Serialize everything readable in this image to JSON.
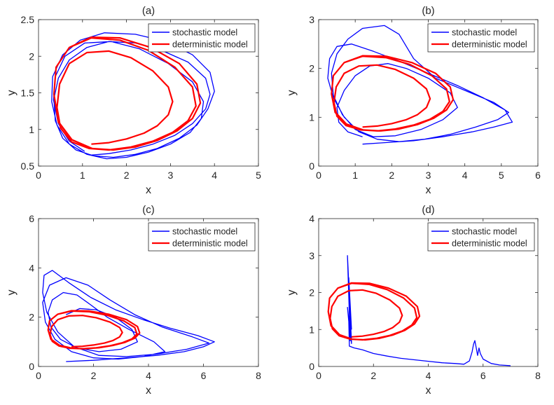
{
  "chart_data": [
    {
      "type": "line",
      "panel_label": "(a)",
      "title": "(a)",
      "xlabel": "x",
      "ylabel": "y",
      "xlim": [
        0,
        5
      ],
      "ylim": [
        0.5,
        2.5
      ],
      "xticks": [
        0,
        1,
        2,
        3,
        4,
        5
      ],
      "yticks": [
        0.5,
        1,
        1.5,
        2,
        2.5
      ],
      "xtick_labels": [
        "0",
        "1",
        "2",
        "3",
        "4",
        "5"
      ],
      "ytick_labels": [
        "0.5",
        "1",
        "1.5",
        "2",
        "2.5"
      ],
      "legend": {
        "position": "top-right",
        "entries": [
          "stochastic model",
          "deterministic model"
        ]
      },
      "series": [
        {
          "name": "stochastic model",
          "color": "#0000ff",
          "x": [
            1.2,
            1.6,
            2.1,
            2.6,
            3.1,
            3.5,
            3.8,
            3.9,
            3.8,
            3.4,
            2.8,
            2.2,
            1.6,
            1.1,
            0.7,
            0.45,
            0.35,
            0.38,
            0.55,
            0.85,
            1.25,
            1.7,
            2.2,
            2.7,
            3.2,
            3.6,
            3.85,
            4.0,
            3.9,
            3.5,
            2.9,
            2.2,
            1.5,
            0.95,
            0.55,
            0.32,
            0.3,
            0.42,
            0.7,
            1.1,
            1.55,
            2.0,
            2.5,
            3.0,
            3.45,
            3.7,
            3.75,
            3.5,
            2.95,
            2.3,
            1.65,
            1.05,
            0.6,
            0.38,
            0.34,
            0.45,
            0.7,
            1.05
          ],
          "y": [
            0.65,
            0.67,
            0.72,
            0.8,
            0.92,
            1.08,
            1.28,
            1.48,
            1.7,
            1.92,
            2.08,
            2.18,
            2.2,
            2.12,
            1.95,
            1.7,
            1.42,
            1.12,
            0.88,
            0.72,
            0.64,
            0.62,
            0.66,
            0.74,
            0.88,
            1.06,
            1.28,
            1.52,
            1.78,
            2.02,
            2.2,
            2.3,
            2.32,
            2.22,
            2.02,
            1.72,
            1.38,
            1.06,
            0.8,
            0.66,
            0.6,
            0.62,
            0.69,
            0.8,
            0.96,
            1.15,
            1.38,
            1.65,
            1.9,
            2.1,
            2.2,
            2.18,
            2.0,
            1.72,
            1.4,
            1.08,
            0.84,
            0.7
          ]
        },
        {
          "name": "deterministic model",
          "color": "#ff0000",
          "x": [
            1.2,
            1.6,
            2.0,
            2.4,
            2.7,
            2.95,
            3.05,
            2.95,
            2.6,
            2.1,
            1.6,
            1.1,
            0.7,
            0.48,
            0.42,
            0.5,
            0.75,
            1.15,
            1.6,
            2.1,
            2.6,
            3.05,
            3.4,
            3.58,
            3.5,
            3.1,
            2.5,
            1.85,
            1.2,
            0.7,
            0.4,
            0.35,
            0.45,
            0.75,
            1.2,
            1.7,
            2.2,
            2.7,
            3.15,
            3.5,
            3.68,
            3.6,
            3.2,
            2.55,
            1.85,
            1.2,
            0.7,
            0.4,
            0.35,
            0.46,
            0.76,
            1.22
          ],
          "y": [
            0.8,
            0.82,
            0.87,
            0.95,
            1.05,
            1.2,
            1.38,
            1.58,
            1.8,
            1.98,
            2.07,
            2.05,
            1.9,
            1.62,
            1.3,
            1.02,
            0.83,
            0.74,
            0.72,
            0.76,
            0.84,
            0.96,
            1.12,
            1.32,
            1.58,
            1.85,
            2.08,
            2.22,
            2.25,
            2.12,
            1.85,
            1.48,
            1.1,
            0.86,
            0.74,
            0.72,
            0.76,
            0.85,
            0.98,
            1.15,
            1.36,
            1.62,
            1.9,
            2.12,
            2.25,
            2.26,
            2.12,
            1.85,
            1.48,
            1.1,
            0.86,
            0.74
          ]
        }
      ]
    },
    {
      "type": "line",
      "panel_label": "(b)",
      "title": "(b)",
      "xlabel": "x",
      "ylabel": "y",
      "xlim": [
        0,
        6
      ],
      "ylim": [
        0,
        3
      ],
      "xticks": [
        0,
        1,
        2,
        3,
        4,
        5,
        6
      ],
      "yticks": [
        0,
        1,
        2,
        3
      ],
      "xtick_labels": [
        "0",
        "1",
        "2",
        "3",
        "4",
        "5",
        "6"
      ],
      "ytick_labels": [
        "0",
        "1",
        "2",
        "3"
      ],
      "legend": {
        "position": "top-right",
        "entries": [
          "stochastic model",
          "deterministic model"
        ]
      },
      "series": [
        {
          "name": "stochastic model",
          "color": "#0000ff",
          "x": [
            1.2,
            1.8,
            2.6,
            3.4,
            4.2,
            4.8,
            5.3,
            5.1,
            4.5,
            3.8,
            3.0,
            2.2,
            1.5,
            0.9,
            0.5,
            0.3,
            0.25,
            0.4,
            0.7,
            1.1,
            1.6,
            2.2,
            2.9,
            3.6,
            4.3,
            4.9,
            5.2,
            4.8,
            4.0,
            3.2,
            2.6,
            2.2,
            1.8,
            1.2,
            0.8,
            0.5,
            0.35,
            0.4,
            0.65,
            1.0,
            1.5,
            2.1,
            2.8,
            3.4,
            3.8,
            3.6,
            3.0,
            2.4,
            1.9,
            1.4,
            1.0,
            0.7,
            0.5,
            0.55,
            0.8,
            1.2
          ],
          "y": [
            0.45,
            0.48,
            0.52,
            0.6,
            0.7,
            0.8,
            0.9,
            1.15,
            1.4,
            1.65,
            1.9,
            2.15,
            2.35,
            2.5,
            2.45,
            2.2,
            1.8,
            1.4,
            1.0,
            0.7,
            0.55,
            0.5,
            0.55,
            0.65,
            0.8,
            0.95,
            1.1,
            1.3,
            1.55,
            1.8,
            2.2,
            2.7,
            2.88,
            2.82,
            2.6,
            2.3,
            1.9,
            1.45,
            1.05,
            0.75,
            0.6,
            0.62,
            0.75,
            0.95,
            1.2,
            1.5,
            1.8,
            2.0,
            2.1,
            2.05,
            1.85,
            1.55,
            1.2,
            0.9,
            0.7,
            0.6
          ]
        },
        {
          "name": "deterministic model",
          "color": "#ff0000",
          "x": [
            1.2,
            1.6,
            2.0,
            2.4,
            2.7,
            2.95,
            3.05,
            2.95,
            2.6,
            2.1,
            1.6,
            1.1,
            0.7,
            0.48,
            0.42,
            0.5,
            0.75,
            1.15,
            1.6,
            2.1,
            2.6,
            3.05,
            3.4,
            3.58,
            3.5,
            3.1,
            2.5,
            1.85,
            1.2,
            0.7,
            0.4,
            0.35,
            0.45,
            0.75,
            1.2,
            1.7,
            2.2,
            2.7,
            3.15,
            3.5,
            3.68,
            3.6,
            3.2,
            2.55,
            1.85,
            1.2,
            0.7,
            0.4,
            0.35,
            0.46,
            0.76,
            1.22
          ],
          "y": [
            0.8,
            0.82,
            0.87,
            0.95,
            1.05,
            1.2,
            1.38,
            1.58,
            1.8,
            1.98,
            2.07,
            2.05,
            1.9,
            1.62,
            1.3,
            1.02,
            0.83,
            0.74,
            0.72,
            0.76,
            0.84,
            0.96,
            1.12,
            1.32,
            1.58,
            1.85,
            2.08,
            2.22,
            2.25,
            2.12,
            1.85,
            1.48,
            1.1,
            0.86,
            0.74,
            0.72,
            0.76,
            0.85,
            0.98,
            1.15,
            1.36,
            1.62,
            1.9,
            2.12,
            2.25,
            2.26,
            2.12,
            1.85,
            1.48,
            1.1,
            0.86,
            0.74
          ]
        }
      ]
    },
    {
      "type": "line",
      "panel_label": "(c)",
      "title": "(c)",
      "xlabel": "x",
      "ylabel": "y",
      "xlim": [
        0,
        8
      ],
      "ylim": [
        0,
        6
      ],
      "xticks": [
        0,
        2,
        4,
        6,
        8
      ],
      "yticks": [
        0,
        2,
        4,
        6
      ],
      "xtick_labels": [
        "0",
        "2",
        "4",
        "6",
        "8"
      ],
      "ytick_labels": [
        "0",
        "2",
        "4",
        "6"
      ],
      "legend": {
        "position": "top-right",
        "entries": [
          "stochastic model",
          "deterministic model"
        ]
      },
      "series": [
        {
          "name": "stochastic model",
          "color": "#0000ff",
          "x": [
            1.0,
            2.0,
            3.2,
            4.3,
            5.3,
            6.0,
            6.4,
            5.8,
            4.8,
            3.8,
            2.8,
            1.9,
            1.1,
            0.5,
            0.2,
            0.15,
            0.3,
            0.7,
            1.3,
            2.2,
            3.2,
            4.3,
            5.4,
            6.2,
            5.6,
            4.5,
            3.5,
            2.6,
            1.8,
            1.0,
            0.4,
            0.15,
            0.25,
            0.6,
            1.2,
            2.0,
            2.9,
            3.8,
            4.6,
            4.2,
            3.3,
            2.5,
            1.9,
            1.4,
            0.9,
            0.5,
            0.35,
            0.45,
            0.8,
            1.4,
            2.2,
            3.0,
            3.6,
            3.4,
            2.8,
            2.1,
            1.5,
            1.0
          ],
          "y": [
            0.2,
            0.25,
            0.35,
            0.45,
            0.6,
            0.8,
            1.0,
            1.25,
            1.55,
            1.9,
            2.3,
            2.8,
            3.4,
            3.9,
            3.7,
            3.0,
            2.2,
            1.4,
            0.8,
            0.45,
            0.4,
            0.5,
            0.7,
            0.95,
            1.2,
            1.6,
            2.1,
            2.7,
            3.3,
            3.6,
            3.3,
            2.6,
            1.8,
            1.1,
            0.6,
            0.35,
            0.3,
            0.4,
            0.6,
            1.0,
            1.5,
            2.0,
            2.5,
            2.9,
            3.0,
            2.7,
            2.2,
            1.6,
            1.1,
            0.75,
            0.6,
            0.7,
            1.0,
            1.5,
            2.0,
            2.3,
            2.35,
            2.1
          ]
        },
        {
          "name": "deterministic model",
          "color": "#ff0000",
          "x": [
            1.2,
            1.6,
            2.0,
            2.4,
            2.7,
            2.95,
            3.05,
            2.95,
            2.6,
            2.1,
            1.6,
            1.1,
            0.7,
            0.48,
            0.42,
            0.5,
            0.75,
            1.15,
            1.6,
            2.1,
            2.6,
            3.05,
            3.4,
            3.58,
            3.5,
            3.1,
            2.5,
            1.85,
            1.2,
            0.7,
            0.4,
            0.35,
            0.45,
            0.75,
            1.2,
            1.7,
            2.2,
            2.7,
            3.15,
            3.5,
            3.68,
            3.6,
            3.2,
            2.55,
            1.85,
            1.2,
            0.7,
            0.4,
            0.35,
            0.46,
            0.76,
            1.22
          ],
          "y": [
            0.8,
            0.82,
            0.87,
            0.95,
            1.05,
            1.2,
            1.38,
            1.58,
            1.8,
            1.98,
            2.07,
            2.05,
            1.9,
            1.62,
            1.3,
            1.02,
            0.83,
            0.74,
            0.72,
            0.76,
            0.84,
            0.96,
            1.12,
            1.32,
            1.58,
            1.85,
            2.08,
            2.22,
            2.25,
            2.12,
            1.85,
            1.48,
            1.1,
            0.86,
            0.74,
            0.72,
            0.76,
            0.85,
            0.98,
            1.15,
            1.36,
            1.62,
            1.9,
            2.12,
            2.25,
            2.26,
            2.12,
            1.85,
            1.48,
            1.1,
            0.86,
            0.74
          ]
        }
      ]
    },
    {
      "type": "line",
      "panel_label": "(d)",
      "title": "(d)",
      "xlabel": "x",
      "ylabel": "y",
      "xlim": [
        0,
        8
      ],
      "ylim": [
        0,
        4
      ],
      "xticks": [
        0,
        2,
        4,
        6,
        8
      ],
      "yticks": [
        0,
        1,
        2,
        3,
        4
      ],
      "xtick_labels": [
        "0",
        "2",
        "4",
        "6",
        "8"
      ],
      "ytick_labels": [
        "0",
        "1",
        "2",
        "3",
        "4"
      ],
      "legend": {
        "position": "top-right",
        "entries": [
          "stochastic model",
          "deterministic model"
        ]
      },
      "series": [
        {
          "name": "stochastic model",
          "color": "#0000ff",
          "x": [
            1.2,
            1.1,
            1.15,
            1.05,
            1.2,
            1.1,
            1.15,
            1.05,
            1.2,
            1.1,
            1.12,
            1.3,
            1.6,
            2.0,
            2.5,
            3.0,
            3.5,
            4.0,
            4.5,
            5.0,
            5.3,
            5.5,
            5.6,
            5.65,
            5.7,
            5.75,
            5.8,
            5.85,
            5.9,
            6.0,
            6.3,
            6.6,
            7.0
          ],
          "y": [
            1.0,
            2.4,
            0.7,
            3.0,
            0.65,
            2.0,
            0.8,
            1.6,
            0.62,
            1.2,
            0.55,
            0.5,
            0.45,
            0.35,
            0.28,
            0.22,
            0.18,
            0.14,
            0.1,
            0.08,
            0.06,
            0.15,
            0.4,
            0.6,
            0.7,
            0.5,
            0.3,
            0.5,
            0.35,
            0.2,
            0.08,
            0.04,
            0.02
          ]
        },
        {
          "name": "deterministic model",
          "color": "#ff0000",
          "x": [
            1.2,
            1.6,
            2.0,
            2.4,
            2.7,
            2.95,
            3.05,
            2.95,
            2.6,
            2.1,
            1.6,
            1.1,
            0.7,
            0.48,
            0.42,
            0.5,
            0.75,
            1.15,
            1.6,
            2.1,
            2.6,
            3.05,
            3.4,
            3.58,
            3.5,
            3.1,
            2.5,
            1.85,
            1.2,
            0.7,
            0.4,
            0.35,
            0.45,
            0.75,
            1.2,
            1.7,
            2.2,
            2.7,
            3.15,
            3.5,
            3.68,
            3.6,
            3.2,
            2.55,
            1.85,
            1.2,
            0.7,
            0.4,
            0.35,
            0.46,
            0.76,
            1.22
          ],
          "y": [
            0.8,
            0.82,
            0.87,
            0.95,
            1.05,
            1.2,
            1.38,
            1.58,
            1.8,
            1.98,
            2.07,
            2.05,
            1.9,
            1.62,
            1.3,
            1.02,
            0.83,
            0.74,
            0.72,
            0.76,
            0.84,
            0.96,
            1.12,
            1.32,
            1.58,
            1.85,
            2.08,
            2.22,
            2.25,
            2.12,
            1.85,
            1.48,
            1.1,
            0.86,
            0.74,
            0.72,
            0.76,
            0.85,
            0.98,
            1.15,
            1.36,
            1.62,
            1.9,
            2.12,
            2.25,
            2.26,
            2.12,
            1.85,
            1.48,
            1.1,
            0.86,
            0.74
          ]
        }
      ]
    }
  ]
}
